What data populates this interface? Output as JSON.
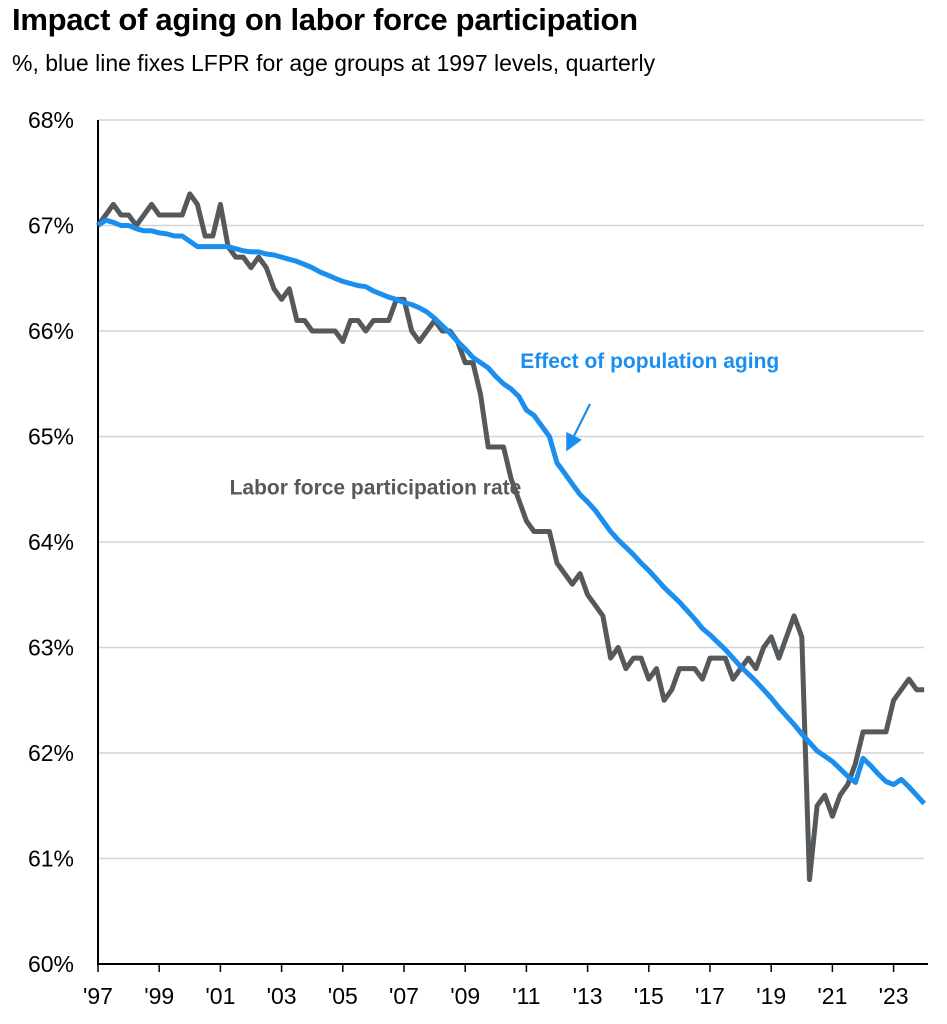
{
  "chart_data": {
    "type": "line",
    "title": "Impact of aging on labor force participation",
    "subtitle": "%, blue line fixes LFPR for age groups at 1997 levels, quarterly",
    "xlabel": "",
    "ylabel": "",
    "ylim": [
      60,
      68
    ],
    "xlim": [
      1997,
      2024
    ],
    "grid": true,
    "yticks": [
      60,
      61,
      62,
      63,
      64,
      65,
      66,
      67,
      68
    ],
    "ytick_labels": [
      "60%",
      "61%",
      "62%",
      "63%",
      "64%",
      "65%",
      "66%",
      "67%",
      "68%"
    ],
    "xticks": [
      1997,
      1999,
      2001,
      2003,
      2005,
      2007,
      2009,
      2011,
      2013,
      2015,
      2017,
      2019,
      2021,
      2023
    ],
    "xtick_labels": [
      "'97",
      "'99",
      "'01",
      "'03",
      "'05",
      "'07",
      "'09",
      "'11",
      "'13",
      "'15",
      "'17",
      "'19",
      "'21",
      "'23"
    ],
    "x_start": "1997Q1",
    "frequency": "quarterly",
    "series": [
      {
        "name": "Labor force participation rate",
        "color": "#55595c",
        "values": [
          67.0,
          67.1,
          67.2,
          67.1,
          67.1,
          67.0,
          67.1,
          67.2,
          67.1,
          67.1,
          67.1,
          67.1,
          67.3,
          67.2,
          66.9,
          66.9,
          67.2,
          66.8,
          66.7,
          66.7,
          66.6,
          66.7,
          66.6,
          66.4,
          66.3,
          66.4,
          66.1,
          66.1,
          66.0,
          66.0,
          66.0,
          66.0,
          65.9,
          66.1,
          66.1,
          66.0,
          66.1,
          66.1,
          66.1,
          66.3,
          66.3,
          66.0,
          65.9,
          66.0,
          66.1,
          66.0,
          66.0,
          65.9,
          65.7,
          65.7,
          65.4,
          64.9,
          64.9,
          64.9,
          64.6,
          64.4,
          64.2,
          64.1,
          64.1,
          64.1,
          63.8,
          63.7,
          63.6,
          63.7,
          63.5,
          63.4,
          63.3,
          62.9,
          63.0,
          62.8,
          62.9,
          62.9,
          62.7,
          62.8,
          62.5,
          62.6,
          62.8,
          62.8,
          62.8,
          62.7,
          62.9,
          62.9,
          62.9,
          62.7,
          62.8,
          62.9,
          62.8,
          63.0,
          63.1,
          62.9,
          63.1,
          63.3,
          63.1,
          60.8,
          61.5,
          61.6,
          61.4,
          61.6,
          61.7,
          61.9,
          62.2,
          62.2,
          62.2,
          62.2,
          62.5,
          62.6,
          62.7,
          62.6,
          62.6
        ]
      },
      {
        "name": "Effect of population aging",
        "color": "#1a8fef",
        "values": [
          67.0,
          67.05,
          67.03,
          67.0,
          67.0,
          66.97,
          66.95,
          66.95,
          66.93,
          66.92,
          66.9,
          66.9,
          66.85,
          66.8,
          66.8,
          66.8,
          66.8,
          66.8,
          66.78,
          66.76,
          66.75,
          66.75,
          66.73,
          66.72,
          66.7,
          66.68,
          66.66,
          66.63,
          66.6,
          66.56,
          66.53,
          66.5,
          66.47,
          66.45,
          66.43,
          66.42,
          66.38,
          66.35,
          66.32,
          66.3,
          66.27,
          66.25,
          66.22,
          66.18,
          66.12,
          66.05,
          65.98,
          65.9,
          65.83,
          65.75,
          65.7,
          65.65,
          65.57,
          65.5,
          65.45,
          65.38,
          65.25,
          65.2,
          65.1,
          65.0,
          64.75,
          64.65,
          64.55,
          64.45,
          64.38,
          64.3,
          64.2,
          64.1,
          64.02,
          63.95,
          63.88,
          63.8,
          63.73,
          63.65,
          63.57,
          63.5,
          63.43,
          63.35,
          63.27,
          63.18,
          63.12,
          63.05,
          62.98,
          62.9,
          62.82,
          62.75,
          62.68,
          62.6,
          62.52,
          62.43,
          62.35,
          62.27,
          62.18,
          62.1,
          62.02,
          61.97,
          61.92,
          61.85,
          61.78,
          61.72,
          61.95,
          61.88,
          61.8,
          61.73,
          61.7,
          61.75,
          61.68,
          61.6,
          61.52
        ]
      }
    ],
    "annotations": [
      {
        "text": "Labor force participation rate",
        "color": "#55595c",
        "x": 2001.3,
        "y": 64.45
      },
      {
        "text": "Effect of population aging",
        "color": "#1a8fef",
        "x": 2010.8,
        "y": 65.65,
        "arrow_to": {
          "x": 2012.3,
          "y": 64.8
        }
      }
    ]
  }
}
